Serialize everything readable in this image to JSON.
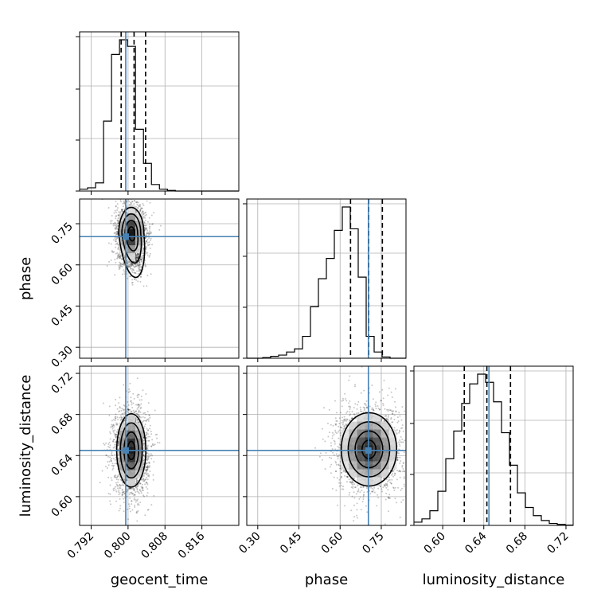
{
  "chart_data": {
    "type": "corner",
    "parameters": [
      "geocent_time",
      "phase",
      "luminosity_distance"
    ],
    "truths": {
      "geocent_time": 0.7995,
      "phase": 0.703,
      "luminosity_distance": 0.645
    },
    "ranges": {
      "geocent_time": [
        0.7895,
        0.824
      ],
      "phase": [
        0.26,
        0.84
      ],
      "luminosity_distance": [
        0.572,
        0.727
      ]
    },
    "quantiles": {
      "geocent_time": [
        0.7985,
        0.8013,
        0.8038
      ],
      "phase": [
        0.638,
        0.704,
        0.754
      ],
      "luminosity_distance": [
        0.621,
        0.643,
        0.666
      ]
    },
    "ticks": {
      "geocent_time": [
        0.792,
        0.8,
        0.808,
        0.816
      ],
      "phase": [
        0.3,
        0.45,
        0.6,
        0.75
      ],
      "luminosity_distance": [
        0.6,
        0.64,
        0.68,
        0.72
      ]
    },
    "tick_labels": {
      "geocent_time": [
        "0.792",
        "0.800",
        "0.808",
        "0.816"
      ],
      "phase": [
        "0.30",
        "0.45",
        "0.60",
        "0.75"
      ],
      "luminosity_distance": [
        "0.60",
        "0.64",
        "0.68",
        "0.72"
      ]
    },
    "histograms": {
      "geocent_time": {
        "x_start": 0.7895,
        "bin_width": 0.00173,
        "counts": [
          0.012,
          0.02,
          0.05,
          0.43,
          0.84,
          0.93,
          0.89,
          0.38,
          0.17,
          0.04,
          0.012,
          0.004,
          0,
          0,
          0,
          0,
          0,
          0,
          0,
          0
        ]
      },
      "phase": {
        "x_start": 0.26,
        "bin_width": 0.029,
        "counts": [
          0,
          0,
          0.004,
          0.012,
          0.02,
          0.04,
          0.06,
          0.14,
          0.33,
          0.51,
          0.64,
          0.82,
          0.97,
          0.83,
          0.52,
          0.14,
          0.04,
          0.008,
          0,
          0
        ]
      },
      "luminosity_distance": {
        "x_start": 0.572,
        "bin_width": 0.00775,
        "counts": [
          0.02,
          0.04,
          0.09,
          0.21,
          0.41,
          0.58,
          0.75,
          0.87,
          0.93,
          0.88,
          0.76,
          0.57,
          0.37,
          0.2,
          0.11,
          0.06,
          0.03,
          0.012,
          0.006,
          0.002
        ]
      }
    },
    "joint": {
      "phase|geocent_time": {
        "mean": [
          0.8007,
          0.715
        ],
        "sd": [
          0.0013,
          0.045
        ],
        "skew_tail": [
          0.8016,
          0.64
        ]
      },
      "luminosity_distance|geocent_time": {
        "mean": [
          0.8007,
          0.645
        ],
        "sd": [
          0.0015,
          0.017
        ]
      },
      "luminosity_distance|phase": {
        "mean": [
          0.705,
          0.646
        ],
        "sd": [
          0.048,
          0.017
        ]
      }
    },
    "grid": true,
    "colors": {
      "truth": "#4682b4",
      "contour": "#000000",
      "hist": "#000000",
      "grid": "#b0b0b0"
    }
  }
}
